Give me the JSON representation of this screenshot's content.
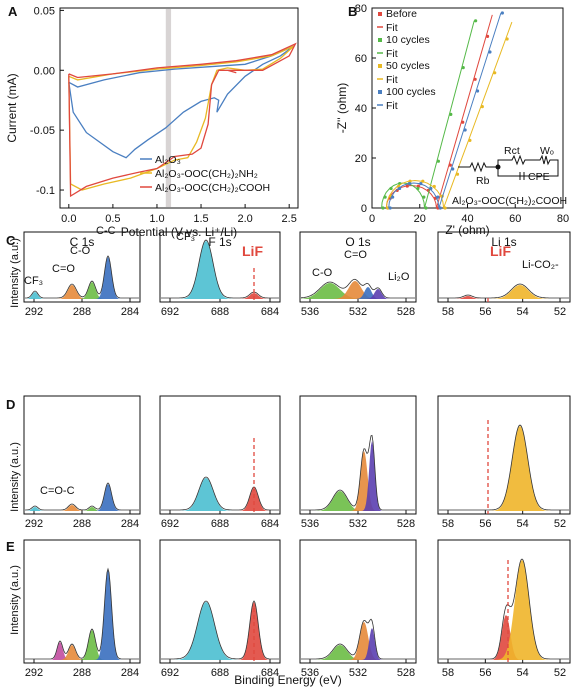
{
  "panel_a": {
    "letter": "A",
    "ylabel": "Current (mA)",
    "xlabel": "Potential (V vs. Li⁺/Li)",
    "xticks": [
      "0.0",
      "0.5",
      "1.0",
      "1.5",
      "2.0",
      "2.5"
    ],
    "yticks": [
      "0.05",
      "0.00",
      "-0.05",
      "-0.1"
    ],
    "legend": [
      {
        "label": "Al₂O₃",
        "color": "#4a7fc1"
      },
      {
        "label": "Al₂O₃-OOC(CH₂)₂NH₂",
        "color": "#e8b923"
      },
      {
        "label": "Al₂O₃-OOC(CH₂)₂COOH",
        "color": "#e0483e"
      }
    ]
  },
  "panel_b": {
    "letter": "B",
    "ylabel": "-Z'' (ohm)",
    "xlabel": "Z' (ohm)",
    "xticks": [
      "0",
      "20",
      "40",
      "60",
      "80"
    ],
    "yticks": [
      "0",
      "20",
      "40",
      "60",
      "80"
    ],
    "legend": [
      {
        "label": "Before",
        "fit": "Fit",
        "color": "#e0483e"
      },
      {
        "label": "10 cycles",
        "fit": "Fit",
        "color": "#55b948"
      },
      {
        "label": "50 cycles",
        "fit": "Fit",
        "color": "#e8b923"
      },
      {
        "label": "100 cycles",
        "fit": "Fit",
        "color": "#4a7fc1"
      }
    ],
    "circuit": {
      "rb": "Rb",
      "rct": "Rct",
      "cpe": "CPE",
      "wo": "Wₒ"
    },
    "sample_label": "Al₂O₃-OOC(CH₂)₂COOH"
  },
  "xps": {
    "ylabel": "Intensity (a.u.)",
    "xlabel": "Binding Energy (eV)",
    "row_letters": [
      "C",
      "D",
      "E"
    ],
    "col_titles": [
      "C 1s",
      "F 1s",
      "O 1s",
      "Li 1s"
    ],
    "col_ticks": [
      [
        "292",
        "288",
        "284"
      ],
      [
        "692",
        "688",
        "684"
      ],
      [
        "536",
        "532",
        "528"
      ],
      [
        "58",
        "56",
        "54",
        "52"
      ]
    ],
    "labels": {
      "c_cf3": "CF₃",
      "c_co": "C=O",
      "c_c_o": "C-O",
      "c_cc": "C-C",
      "f_cf3": "CF₃",
      "f_lif": "LiF",
      "o_co": "C-O",
      "o_ceqo": "C=O",
      "o_li2o": "Li₂O",
      "li_lif": "LiF",
      "li_lico2": "Li-CO₂-",
      "d_coc": "C=O-C"
    },
    "colors": {
      "cyan": "#4bbfd0",
      "orange": "#e58a3a",
      "green": "#6cbd45",
      "blue": "#3a6fbf",
      "purple": "#5b3fb0",
      "red": "#e0483e",
      "yellow": "#f0b52a",
      "magenta": "#c24da0"
    }
  }
}
